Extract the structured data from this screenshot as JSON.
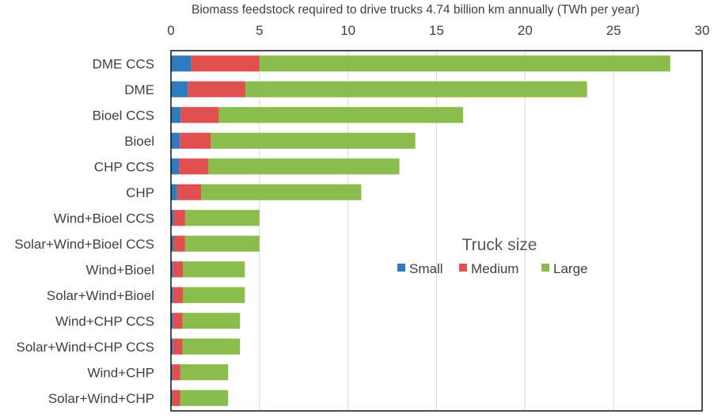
{
  "chart_data": {
    "type": "bar",
    "orientation": "horizontal",
    "stacked": true,
    "title": "Biomass feedstock required to drive trucks 4.74 billion km annually  (TWh per year)",
    "xlabel": "",
    "ylabel": "",
    "xlim": [
      0,
      30
    ],
    "xticks": [
      0,
      5,
      10,
      15,
      20,
      25,
      30
    ],
    "x_axis_position": "top",
    "grid": "vertical",
    "categories": [
      "DME CCS",
      "DME",
      "Bioel CCS",
      "Bioel",
      "CHP CCS",
      "CHP",
      "Wind+Bioel CCS",
      "Solar+Wind+Bioel CCS",
      "Wind+Bioel",
      "Solar+Wind+Bioel",
      "Wind+CHP CCS",
      "Solar+Wind+CHP CCS",
      "Wind+CHP",
      "Solar+Wind+CHP"
    ],
    "series": [
      {
        "name": "Small",
        "color": "#2e7bbf",
        "values": [
          1.15,
          0.95,
          0.55,
          0.5,
          0.45,
          0.35,
          0.15,
          0.15,
          0.12,
          0.12,
          0.12,
          0.12,
          0.08,
          0.08
        ]
      },
      {
        "name": "Medium",
        "color": "#e05050",
        "values": [
          3.85,
          3.25,
          2.15,
          1.75,
          1.65,
          1.35,
          0.65,
          0.65,
          0.55,
          0.55,
          0.53,
          0.53,
          0.45,
          0.45
        ]
      },
      {
        "name": "Large",
        "color": "#8bbd4c",
        "values": [
          23.2,
          19.3,
          13.8,
          11.55,
          10.8,
          9.05,
          4.2,
          4.2,
          3.5,
          3.5,
          3.25,
          3.25,
          2.7,
          2.7
        ]
      }
    ],
    "legend": {
      "title": "Truck size",
      "placement": "center-right",
      "entries": [
        "Small",
        "Medium",
        "Large"
      ]
    }
  }
}
